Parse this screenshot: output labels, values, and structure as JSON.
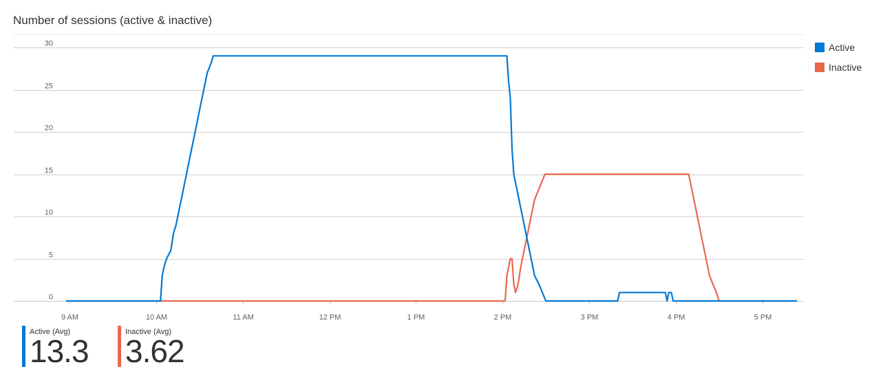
{
  "title": "Number of sessions (active & inactive)",
  "colors": {
    "active": "#0078d4",
    "inactive": "#e8674d",
    "grid": "#d0d0d0"
  },
  "legend": [
    {
      "name": "Active",
      "color": "#0078d4"
    },
    {
      "name": "Inactive",
      "color": "#e8674d"
    }
  ],
  "summary": [
    {
      "label": "Active (Avg)",
      "value": "13.3",
      "color": "#0078d4"
    },
    {
      "label": "Inactive (Avg)",
      "value": "3.62",
      "color": "#e8674d"
    }
  ],
  "chart_data": {
    "type": "line",
    "title": "Number of sessions (active & inactive)",
    "xlabel": "",
    "ylabel": "",
    "x_tick_labels": [
      "9 AM",
      "10 AM",
      "11 AM",
      "12 PM",
      "1 PM",
      "2 PM",
      "3 PM",
      "4 PM",
      "5 PM"
    ],
    "x_tick_values": [
      9,
      10,
      11,
      12,
      13,
      14,
      15,
      16,
      17
    ],
    "y_tick_labels": [
      "0",
      "5",
      "10",
      "15",
      "20",
      "25",
      "30"
    ],
    "y_tick_values": [
      0,
      5,
      10,
      15,
      20,
      25,
      30
    ],
    "xlim": [
      8.96,
      17.4
    ],
    "ylim": [
      0,
      30
    ],
    "grid": true,
    "legend_position": "right",
    "x_units": "hour of day (decimal)",
    "series": [
      {
        "name": "Active",
        "color": "#0078d4",
        "points": [
          [
            8.96,
            0
          ],
          [
            10.05,
            0
          ],
          [
            10.07,
            3
          ],
          [
            10.09,
            4
          ],
          [
            10.12,
            5
          ],
          [
            10.17,
            6
          ],
          [
            10.2,
            8
          ],
          [
            10.23,
            9
          ],
          [
            10.27,
            11
          ],
          [
            10.31,
            13
          ],
          [
            10.35,
            15
          ],
          [
            10.39,
            17
          ],
          [
            10.43,
            19
          ],
          [
            10.47,
            21
          ],
          [
            10.51,
            23
          ],
          [
            10.55,
            25
          ],
          [
            10.59,
            27
          ],
          [
            10.63,
            28
          ],
          [
            10.66,
            29
          ],
          [
            14.05,
            29
          ],
          [
            14.07,
            26
          ],
          [
            14.09,
            24
          ],
          [
            14.11,
            18
          ],
          [
            14.13,
            15
          ],
          [
            14.17,
            13
          ],
          [
            14.21,
            11
          ],
          [
            14.25,
            9
          ],
          [
            14.29,
            7
          ],
          [
            14.33,
            5
          ],
          [
            14.37,
            3
          ],
          [
            14.42,
            2
          ],
          [
            14.46,
            1
          ],
          [
            14.5,
            0
          ],
          [
            15.33,
            0
          ],
          [
            15.35,
            1
          ],
          [
            15.88,
            1
          ],
          [
            15.9,
            0
          ],
          [
            15.92,
            1
          ],
          [
            15.95,
            1
          ],
          [
            15.97,
            0
          ],
          [
            17.4,
            0
          ]
        ]
      },
      {
        "name": "Inactive",
        "color": "#e8674d",
        "points": [
          [
            8.96,
            0
          ],
          [
            14.03,
            0
          ],
          [
            14.05,
            3
          ],
          [
            14.07,
            4
          ],
          [
            14.09,
            5
          ],
          [
            14.11,
            5
          ],
          [
            14.13,
            2
          ],
          [
            14.15,
            1
          ],
          [
            14.18,
            2
          ],
          [
            14.21,
            4
          ],
          [
            14.25,
            6
          ],
          [
            14.29,
            8
          ],
          [
            14.33,
            10
          ],
          [
            14.37,
            12
          ],
          [
            14.41,
            13
          ],
          [
            14.45,
            14
          ],
          [
            14.49,
            15
          ],
          [
            14.63,
            15
          ],
          [
            16.15,
            15
          ],
          [
            16.19,
            13
          ],
          [
            16.23,
            11
          ],
          [
            16.27,
            9
          ],
          [
            16.31,
            7
          ],
          [
            16.35,
            5
          ],
          [
            16.39,
            3
          ],
          [
            16.43,
            2
          ],
          [
            16.47,
            1
          ],
          [
            16.5,
            0
          ],
          [
            16.63,
            0
          ],
          [
            17.4,
            0
          ]
        ]
      }
    ]
  }
}
